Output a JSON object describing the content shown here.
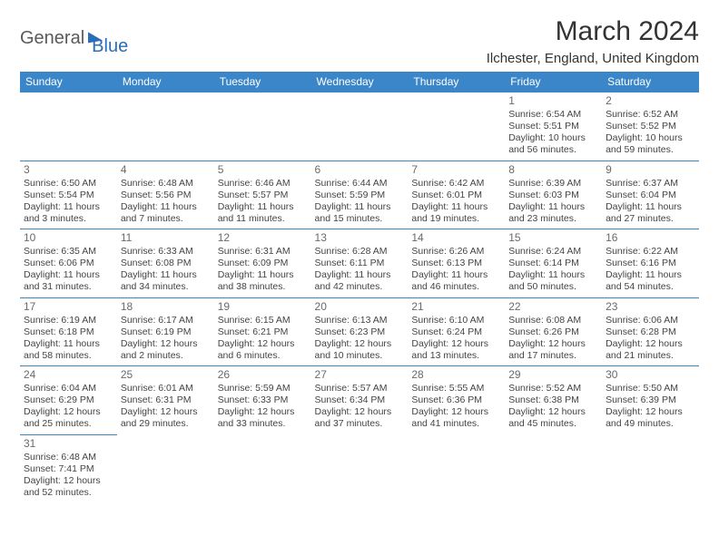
{
  "logo": {
    "part1": "General",
    "part2": "Blue"
  },
  "title": "March 2024",
  "location": "Ilchester, England, United Kingdom",
  "colors": {
    "header_bg": "#3b86c8",
    "header_fg": "#ffffff",
    "border": "#3b86c8",
    "text": "#444444",
    "daynum": "#6a6a6a",
    "title_color": "#333333"
  },
  "weekdays": [
    "Sunday",
    "Monday",
    "Tuesday",
    "Wednesday",
    "Thursday",
    "Friday",
    "Saturday"
  ],
  "weeks": [
    [
      null,
      null,
      null,
      null,
      null,
      {
        "d": "1",
        "sr": "Sunrise: 6:54 AM",
        "ss": "Sunset: 5:51 PM",
        "dl1": "Daylight: 10 hours",
        "dl2": "and 56 minutes."
      },
      {
        "d": "2",
        "sr": "Sunrise: 6:52 AM",
        "ss": "Sunset: 5:52 PM",
        "dl1": "Daylight: 10 hours",
        "dl2": "and 59 minutes."
      }
    ],
    [
      {
        "d": "3",
        "sr": "Sunrise: 6:50 AM",
        "ss": "Sunset: 5:54 PM",
        "dl1": "Daylight: 11 hours",
        "dl2": "and 3 minutes."
      },
      {
        "d": "4",
        "sr": "Sunrise: 6:48 AM",
        "ss": "Sunset: 5:56 PM",
        "dl1": "Daylight: 11 hours",
        "dl2": "and 7 minutes."
      },
      {
        "d": "5",
        "sr": "Sunrise: 6:46 AM",
        "ss": "Sunset: 5:57 PM",
        "dl1": "Daylight: 11 hours",
        "dl2": "and 11 minutes."
      },
      {
        "d": "6",
        "sr": "Sunrise: 6:44 AM",
        "ss": "Sunset: 5:59 PM",
        "dl1": "Daylight: 11 hours",
        "dl2": "and 15 minutes."
      },
      {
        "d": "7",
        "sr": "Sunrise: 6:42 AM",
        "ss": "Sunset: 6:01 PM",
        "dl1": "Daylight: 11 hours",
        "dl2": "and 19 minutes."
      },
      {
        "d": "8",
        "sr": "Sunrise: 6:39 AM",
        "ss": "Sunset: 6:03 PM",
        "dl1": "Daylight: 11 hours",
        "dl2": "and 23 minutes."
      },
      {
        "d": "9",
        "sr": "Sunrise: 6:37 AM",
        "ss": "Sunset: 6:04 PM",
        "dl1": "Daylight: 11 hours",
        "dl2": "and 27 minutes."
      }
    ],
    [
      {
        "d": "10",
        "sr": "Sunrise: 6:35 AM",
        "ss": "Sunset: 6:06 PM",
        "dl1": "Daylight: 11 hours",
        "dl2": "and 31 minutes."
      },
      {
        "d": "11",
        "sr": "Sunrise: 6:33 AM",
        "ss": "Sunset: 6:08 PM",
        "dl1": "Daylight: 11 hours",
        "dl2": "and 34 minutes."
      },
      {
        "d": "12",
        "sr": "Sunrise: 6:31 AM",
        "ss": "Sunset: 6:09 PM",
        "dl1": "Daylight: 11 hours",
        "dl2": "and 38 minutes."
      },
      {
        "d": "13",
        "sr": "Sunrise: 6:28 AM",
        "ss": "Sunset: 6:11 PM",
        "dl1": "Daylight: 11 hours",
        "dl2": "and 42 minutes."
      },
      {
        "d": "14",
        "sr": "Sunrise: 6:26 AM",
        "ss": "Sunset: 6:13 PM",
        "dl1": "Daylight: 11 hours",
        "dl2": "and 46 minutes."
      },
      {
        "d": "15",
        "sr": "Sunrise: 6:24 AM",
        "ss": "Sunset: 6:14 PM",
        "dl1": "Daylight: 11 hours",
        "dl2": "and 50 minutes."
      },
      {
        "d": "16",
        "sr": "Sunrise: 6:22 AM",
        "ss": "Sunset: 6:16 PM",
        "dl1": "Daylight: 11 hours",
        "dl2": "and 54 minutes."
      }
    ],
    [
      {
        "d": "17",
        "sr": "Sunrise: 6:19 AM",
        "ss": "Sunset: 6:18 PM",
        "dl1": "Daylight: 11 hours",
        "dl2": "and 58 minutes."
      },
      {
        "d": "18",
        "sr": "Sunrise: 6:17 AM",
        "ss": "Sunset: 6:19 PM",
        "dl1": "Daylight: 12 hours",
        "dl2": "and 2 minutes."
      },
      {
        "d": "19",
        "sr": "Sunrise: 6:15 AM",
        "ss": "Sunset: 6:21 PM",
        "dl1": "Daylight: 12 hours",
        "dl2": "and 6 minutes."
      },
      {
        "d": "20",
        "sr": "Sunrise: 6:13 AM",
        "ss": "Sunset: 6:23 PM",
        "dl1": "Daylight: 12 hours",
        "dl2": "and 10 minutes."
      },
      {
        "d": "21",
        "sr": "Sunrise: 6:10 AM",
        "ss": "Sunset: 6:24 PM",
        "dl1": "Daylight: 12 hours",
        "dl2": "and 13 minutes."
      },
      {
        "d": "22",
        "sr": "Sunrise: 6:08 AM",
        "ss": "Sunset: 6:26 PM",
        "dl1": "Daylight: 12 hours",
        "dl2": "and 17 minutes."
      },
      {
        "d": "23",
        "sr": "Sunrise: 6:06 AM",
        "ss": "Sunset: 6:28 PM",
        "dl1": "Daylight: 12 hours",
        "dl2": "and 21 minutes."
      }
    ],
    [
      {
        "d": "24",
        "sr": "Sunrise: 6:04 AM",
        "ss": "Sunset: 6:29 PM",
        "dl1": "Daylight: 12 hours",
        "dl2": "and 25 minutes."
      },
      {
        "d": "25",
        "sr": "Sunrise: 6:01 AM",
        "ss": "Sunset: 6:31 PM",
        "dl1": "Daylight: 12 hours",
        "dl2": "and 29 minutes."
      },
      {
        "d": "26",
        "sr": "Sunrise: 5:59 AM",
        "ss": "Sunset: 6:33 PM",
        "dl1": "Daylight: 12 hours",
        "dl2": "and 33 minutes."
      },
      {
        "d": "27",
        "sr": "Sunrise: 5:57 AM",
        "ss": "Sunset: 6:34 PM",
        "dl1": "Daylight: 12 hours",
        "dl2": "and 37 minutes."
      },
      {
        "d": "28",
        "sr": "Sunrise: 5:55 AM",
        "ss": "Sunset: 6:36 PM",
        "dl1": "Daylight: 12 hours",
        "dl2": "and 41 minutes."
      },
      {
        "d": "29",
        "sr": "Sunrise: 5:52 AM",
        "ss": "Sunset: 6:38 PM",
        "dl1": "Daylight: 12 hours",
        "dl2": "and 45 minutes."
      },
      {
        "d": "30",
        "sr": "Sunrise: 5:50 AM",
        "ss": "Sunset: 6:39 PM",
        "dl1": "Daylight: 12 hours",
        "dl2": "and 49 minutes."
      }
    ],
    [
      {
        "d": "31",
        "sr": "Sunrise: 6:48 AM",
        "ss": "Sunset: 7:41 PM",
        "dl1": "Daylight: 12 hours",
        "dl2": "and 52 minutes."
      },
      null,
      null,
      null,
      null,
      null,
      null
    ]
  ]
}
